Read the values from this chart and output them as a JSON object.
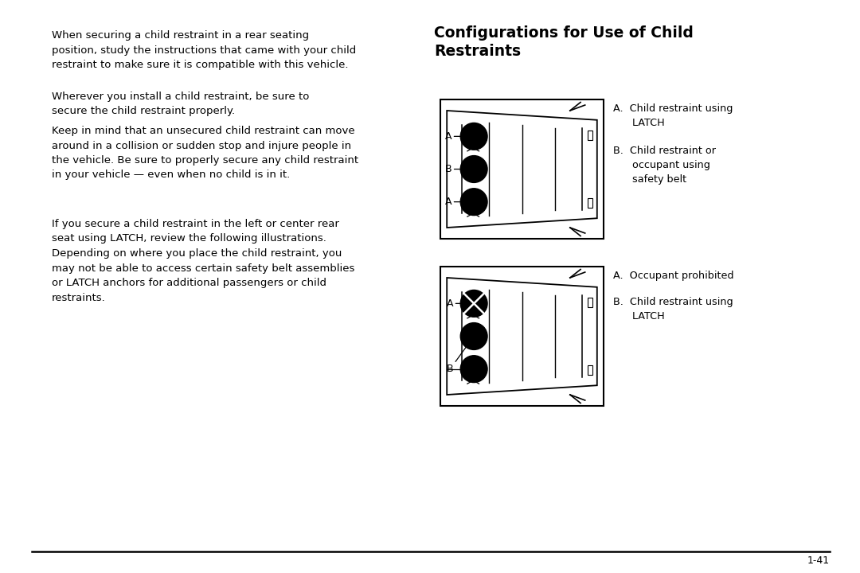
{
  "bg_color": "#ffffff",
  "title": "Configurations for Use of Child\nRestraints",
  "left_paragraphs": [
    "When securing a child restraint in a rear seating\nposition, study the instructions that came with your child\nrestraint to make sure it is compatible with this vehicle.",
    "Wherever you install a child restraint, be sure to\nsecure the child restraint properly.",
    "Keep in mind that an unsecured child restraint can move\naround in a collision or sudden stop and injure people in\nthe vehicle. Be sure to properly secure any child restraint\nin your vehicle — even when no child is in it.",
    "If you secure a child restraint in the left or center rear\nseat using LATCH, review the following illustrations.\nDepending on where you place the child restraint, you\nmay not be able to access certain safety belt assemblies\nor LATCH anchors for additional passengers or child\nrestraints."
  ],
  "diagram1_caption": [
    "A.  Child restraint using\n      LATCH",
    "B.  Child restraint or\n      occupant using\n      safety belt"
  ],
  "diagram2_caption": [
    "A.  Occupant prohibited",
    "B.  Child restraint using\n      LATCH"
  ],
  "page_number": "1-41",
  "text_color": "#000000"
}
